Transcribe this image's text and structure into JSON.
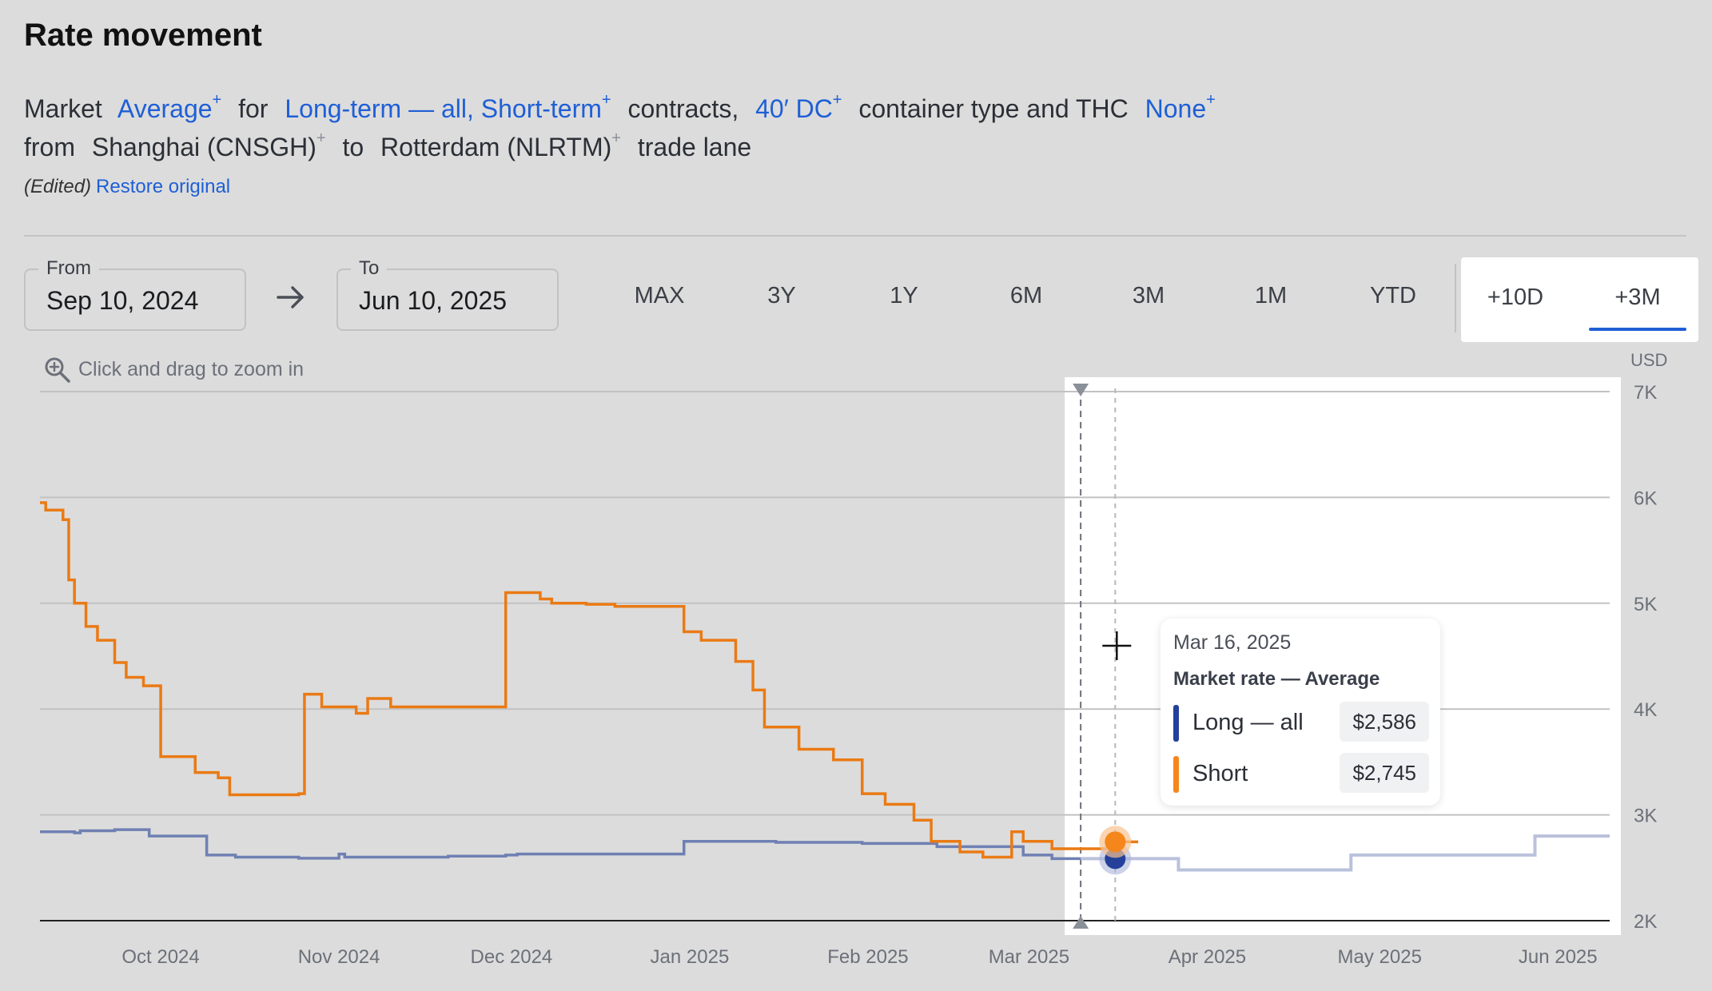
{
  "header": {
    "title": "Rate movement"
  },
  "description": {
    "market_word": "Market",
    "measure": "Average",
    "for_word": "for",
    "contracts_value": "Long-term — all, Short-term",
    "contracts_word": "contracts,",
    "container_value": "40′ DC",
    "container_word": "container type and THC",
    "thc_value": "None",
    "from_word": "from",
    "origin": "Shanghai (CNSGH)",
    "to_word": "to",
    "destination": "Rotterdam (NLRTM)",
    "lane_word": "trade lane",
    "plus": "+"
  },
  "edit_state": {
    "edited_label": "(Edited)",
    "restore_label": "Restore original"
  },
  "date_range": {
    "from_label": "From",
    "from_value": "Sep 10, 2024",
    "to_label": "To",
    "to_value": "Jun 10, 2025"
  },
  "range_buttons": [
    "MAX",
    "3Y",
    "1Y",
    "6M",
    "3M",
    "1M",
    "YTD"
  ],
  "extension_buttons": [
    "+10D",
    "+3M"
  ],
  "active_extension": "+3M",
  "zoom_hint": "Click and drag to zoom in",
  "tooltip": {
    "date": "Mar 16, 2025",
    "title": "Market rate — Average",
    "rows": [
      {
        "name": "Long — all",
        "value": "$2,586"
      },
      {
        "name": "Short",
        "value": "$2,745"
      }
    ]
  },
  "colors": {
    "long": "#6f80b3",
    "long_projection": "#b9c1dc",
    "long_marker": "#24409a",
    "short": "#ea7a14",
    "short_marker": "#f5861c",
    "link": "#1f5fd6",
    "axis": "#222222",
    "grid": "#c2c2c2"
  },
  "chart_data": {
    "type": "line",
    "step": true,
    "unit": "USD",
    "ylim": [
      2000,
      7000
    ],
    "y_ticks": [
      "2K",
      "3K",
      "4K",
      "5K",
      "6K",
      "7K"
    ],
    "x_range": [
      "2024-09-10",
      "2025-06-10"
    ],
    "x_ticks": [
      {
        "label": "Oct 2024",
        "date": "2024-10-01"
      },
      {
        "label": "Nov 2024",
        "date": "2024-11-01"
      },
      {
        "label": "Dec 2024",
        "date": "2024-12-01"
      },
      {
        "label": "Jan 2025",
        "date": "2025-01-01"
      },
      {
        "label": "Feb 2025",
        "date": "2025-02-01"
      },
      {
        "label": "Mar 2025",
        "date": "2025-03-01"
      },
      {
        "label": "Apr 2025",
        "date": "2025-04-01"
      },
      {
        "label": "May 2025",
        "date": "2025-05-01"
      },
      {
        "label": "Jun 2025",
        "date": "2025-06-01"
      }
    ],
    "grid": true,
    "projection_start": "2025-03-10",
    "hover_date": "2025-03-16",
    "series": [
      {
        "name": "Long — all",
        "points": [
          [
            "2024-09-10",
            2840
          ],
          [
            "2024-09-16",
            2830
          ],
          [
            "2024-09-17",
            2850
          ],
          [
            "2024-09-23",
            2860
          ],
          [
            "2024-09-29",
            2800
          ],
          [
            "2024-10-09",
            2620
          ],
          [
            "2024-10-14",
            2600
          ],
          [
            "2024-10-25",
            2590
          ],
          [
            "2024-11-01",
            2630
          ],
          [
            "2024-11-02",
            2600
          ],
          [
            "2024-11-20",
            2610
          ],
          [
            "2024-11-30",
            2620
          ],
          [
            "2024-12-02",
            2630
          ],
          [
            "2024-12-31",
            2750
          ],
          [
            "2025-01-16",
            2740
          ],
          [
            "2025-01-31",
            2730
          ],
          [
            "2025-02-13",
            2700
          ],
          [
            "2025-02-28",
            2620
          ],
          [
            "2025-03-05",
            2586
          ],
          [
            "2025-03-10",
            2586
          ]
        ]
      },
      {
        "name": "Long — all (+3M projection)",
        "points": [
          [
            "2025-03-10",
            2586
          ],
          [
            "2025-03-27",
            2480
          ],
          [
            "2025-04-26",
            2620
          ],
          [
            "2025-05-28",
            2800
          ],
          [
            "2025-06-10",
            2800
          ]
        ]
      },
      {
        "name": "Short",
        "points": [
          [
            "2024-09-10",
            5950
          ],
          [
            "2024-09-11",
            5880
          ],
          [
            "2024-09-14",
            5790
          ],
          [
            "2024-09-15",
            5220
          ],
          [
            "2024-09-16",
            5000
          ],
          [
            "2024-09-18",
            4780
          ],
          [
            "2024-09-20",
            4650
          ],
          [
            "2024-09-23",
            4440
          ],
          [
            "2024-09-25",
            4300
          ],
          [
            "2024-09-28",
            4220
          ],
          [
            "2024-10-01",
            3550
          ],
          [
            "2024-10-07",
            3400
          ],
          [
            "2024-10-11",
            3350
          ],
          [
            "2024-10-13",
            3190
          ],
          [
            "2024-10-25",
            3200
          ],
          [
            "2024-10-26",
            4140
          ],
          [
            "2024-10-29",
            4020
          ],
          [
            "2024-11-04",
            3960
          ],
          [
            "2024-11-06",
            4100
          ],
          [
            "2024-11-10",
            4020
          ],
          [
            "2024-11-30",
            5100
          ],
          [
            "2024-12-06",
            5040
          ],
          [
            "2024-12-08",
            5000
          ],
          [
            "2024-12-14",
            4990
          ],
          [
            "2024-12-19",
            4970
          ],
          [
            "2024-12-31",
            4730
          ],
          [
            "2025-01-03",
            4650
          ],
          [
            "2025-01-09",
            4450
          ],
          [
            "2025-01-12",
            4180
          ],
          [
            "2025-01-14",
            3830
          ],
          [
            "2025-01-20",
            3620
          ],
          [
            "2025-01-26",
            3520
          ],
          [
            "2025-01-31",
            3200
          ],
          [
            "2025-02-04",
            3100
          ],
          [
            "2025-02-09",
            2950
          ],
          [
            "2025-02-12",
            2750
          ],
          [
            "2025-02-17",
            2650
          ],
          [
            "2025-02-21",
            2600
          ],
          [
            "2025-02-26",
            2840
          ],
          [
            "2025-02-28",
            2750
          ],
          [
            "2025-03-05",
            2680
          ],
          [
            "2025-03-10",
            2680
          ],
          [
            "2025-03-16",
            2745
          ],
          [
            "2025-03-20",
            2745
          ]
        ]
      }
    ]
  }
}
